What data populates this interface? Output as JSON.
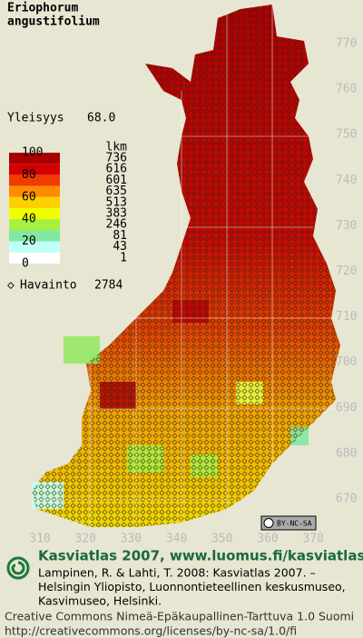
{
  "map": {
    "title_lines": [
      "Eriophorum",
      "angustifolium"
    ],
    "frequency": {
      "label": "Yleisyys",
      "value": "68.0"
    },
    "legend": {
      "scale_labels": [
        "100",
        "80",
        "60",
        "40",
        "20",
        "0"
      ],
      "count_header": "lkm",
      "counts": [
        "736",
        "616",
        "601",
        "635",
        "513",
        "383",
        "246",
        "81",
        "43",
        "1"
      ],
      "colors": [
        "#a80000",
        "#d40000",
        "#f03c00",
        "#ff8c00",
        "#ffd000",
        "#f0ff00",
        "#a8f040",
        "#80e8a0",
        "#c0fff8",
        "#ffffff"
      ]
    },
    "observations": {
      "label": "Havainto",
      "value": "2784"
    },
    "y_labels": [
      "770",
      "760",
      "750",
      "740",
      "730",
      "720",
      "710",
      "700",
      "690",
      "680",
      "670"
    ],
    "x_labels": [
      "310",
      "320",
      "330",
      "340",
      "350",
      "360",
      "370"
    ],
    "license_badge": "BY-NC-SA"
  },
  "footer": {
    "title": "Kasviatlas 2007, www.luomus.fi/kasviatlas",
    "citation": [
      "Lampinen, R. & Lahti, T. 2008: Kasviatlas 2007. –",
      "Helsingin Yliopisto, Luonnontieteellinen keskusmuseo,",
      "Kasvimuseo, Helsinki."
    ],
    "license": [
      "Creative Commons Nimeä-Epäkaupallinen-Tarttuva 1.0 Suomi",
      "http://creativecommons.org/licenses/by-nc-sa/1.0/fi"
    ]
  }
}
